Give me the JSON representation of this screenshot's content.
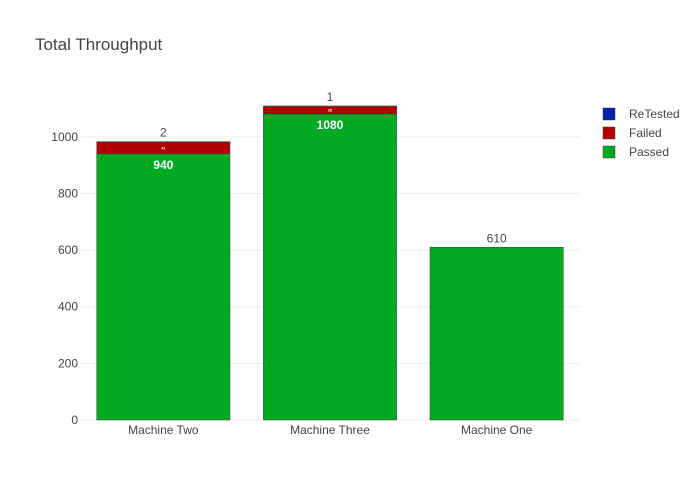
{
  "chart_data": {
    "type": "bar",
    "title": "Total Throughput",
    "categories": [
      "Machine Two",
      "Machine Three",
      "Machine One"
    ],
    "series": [
      {
        "name": "Passed",
        "values": [
          940,
          1080,
          610
        ],
        "color": "#00aa22",
        "labels": [
          "940",
          "1080",
          "610"
        ]
      },
      {
        "name": "Failed",
        "values": [
          41,
          28,
          0
        ],
        "color": "#b20000",
        "labels": [
          "41",
          "28",
          ""
        ]
      },
      {
        "name": "ReTested",
        "values": [
          2,
          1,
          0
        ],
        "color": "#0022aa",
        "labels": [
          "2",
          "1",
          ""
        ]
      }
    ],
    "legend": [
      "ReTested",
      "Failed",
      "Passed"
    ],
    "legend_position": "top-right",
    "ylim": [
      0,
      1130
    ],
    "yticks": [
      0,
      200,
      400,
      600,
      800,
      1000
    ],
    "grid": true,
    "stacked": true
  }
}
